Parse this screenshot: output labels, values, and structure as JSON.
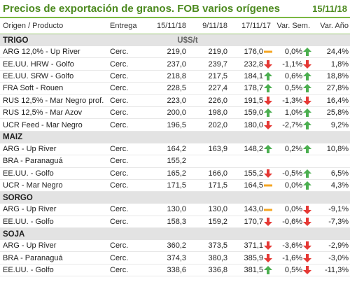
{
  "header": {
    "title": "Precios de exportación de granos. FOB varios orígenes",
    "date": "15/11/18"
  },
  "columns": {
    "origin": "Origen / Producto",
    "delivery": "Entrega",
    "d1": "15/11/18",
    "d2": "9/11/18",
    "d3": "17/11/17",
    "var_week": "Var. Sem.",
    "var_year": "Var. Año"
  },
  "colors": {
    "accent": "#4c8a1f",
    "up": "#4caf50",
    "down": "#e53935",
    "flat": "#f5a623",
    "section_bg": "#e3e3e3"
  },
  "sections": [
    {
      "name": "TRIGO",
      "unit": "U$S/t",
      "rows": [
        {
          "name": "ARG 12,0% - Up River",
          "delivery": "Cerc.",
          "d1": "219,0",
          "d2": "219,0",
          "d3": "176,0",
          "d3_icon": "flat-icon",
          "var_week": "0,0%",
          "week_icon": "up-arrow-icon",
          "var_year": "24,4%"
        },
        {
          "name": "EE.UU. HRW - Golfo",
          "delivery": "Cerc.",
          "d1": "237,0",
          "d2": "239,7",
          "d3": "232,8",
          "d3_icon": "down-arrow-icon",
          "var_week": "-1,1%",
          "week_icon": "down-arrow-icon",
          "var_year": "1,8%"
        },
        {
          "name": "EE.UU. SRW - Golfo",
          "delivery": "Cerc.",
          "d1": "218,8",
          "d2": "217,5",
          "d3": "184,1",
          "d3_icon": "up-arrow-icon",
          "var_week": "0,6%",
          "week_icon": "up-arrow-icon",
          "var_year": "18,8%"
        },
        {
          "name": "FRA Soft - Rouen",
          "delivery": "Cerc.",
          "d1": "228,5",
          "d2": "227,4",
          "d3": "178,7",
          "d3_icon": "up-arrow-icon",
          "var_week": "0,5%",
          "week_icon": "up-arrow-icon",
          "var_year": "27,8%"
        },
        {
          "name": "RUS 12,5% - Mar Negro prof.",
          "delivery": "Cerc.",
          "d1": "223,0",
          "d2": "226,0",
          "d3": "191,5",
          "d3_icon": "down-arrow-icon",
          "var_week": "-1,3%",
          "week_icon": "down-arrow-icon",
          "var_year": "16,4%"
        },
        {
          "name": "RUS 12,5% - Mar Azov",
          "delivery": "Cerc.",
          "d1": "200,0",
          "d2": "198,0",
          "d3": "159,0",
          "d3_icon": "up-arrow-icon",
          "var_week": "1,0%",
          "week_icon": "up-arrow-icon",
          "var_year": "25,8%"
        },
        {
          "name": "UCR Feed - Mar Negro",
          "delivery": "Cerc.",
          "d1": "196,5",
          "d2": "202,0",
          "d3": "180,0",
          "d3_icon": "down-arrow-icon",
          "var_week": "-2,7%",
          "week_icon": "up-arrow-icon",
          "var_year": "9,2%"
        }
      ]
    },
    {
      "name": "MAIZ",
      "unit": "",
      "rows": [
        {
          "name": "ARG - Up River",
          "delivery": "Cerc.",
          "d1": "164,2",
          "d2": "163,9",
          "d3": "148,2",
          "d3_icon": "up-arrow-icon",
          "var_week": "0,2%",
          "week_icon": "up-arrow-icon",
          "var_year": "10,8%"
        },
        {
          "name": "BRA - Paranaguá",
          "delivery": "Cerc.",
          "d1": "155,2",
          "d2": "",
          "d3": "",
          "d3_icon": "",
          "var_week": "",
          "week_icon": "",
          "var_year": ""
        },
        {
          "name": "EE.UU. - Golfo",
          "delivery": "Cerc.",
          "d1": "165,2",
          "d2": "166,0",
          "d3": "155,2",
          "d3_icon": "down-arrow-icon",
          "var_week": "-0,5%",
          "week_icon": "up-arrow-icon",
          "var_year": "6,5%"
        },
        {
          "name": "UCR - Mar Negro",
          "delivery": "Cerc.",
          "d1": "171,5",
          "d2": "171,5",
          "d3": "164,5",
          "d3_icon": "flat-icon",
          "var_week": "0,0%",
          "week_icon": "up-arrow-icon",
          "var_year": "4,3%"
        }
      ]
    },
    {
      "name": "SORGO",
      "unit": "",
      "rows": [
        {
          "name": "ARG - Up River",
          "delivery": "Cerc.",
          "d1": "130,0",
          "d2": "130,0",
          "d3": "143,0",
          "d3_icon": "flat-icon",
          "var_week": "0,0%",
          "week_icon": "down-arrow-icon",
          "var_year": "-9,1%"
        },
        {
          "name": "EE.UU. - Golfo",
          "delivery": "Cerc.",
          "d1": "158,3",
          "d2": "159,2",
          "d3": "170,7",
          "d3_icon": "down-arrow-icon",
          "var_week": "-0,6%",
          "week_icon": "down-arrow-icon",
          "var_year": "-7,3%"
        }
      ]
    },
    {
      "name": "SOJA",
      "unit": "",
      "rows": [
        {
          "name": "ARG - Up River",
          "delivery": "Cerc.",
          "d1": "360,2",
          "d2": "373,5",
          "d3": "371,1",
          "d3_icon": "down-arrow-icon",
          "var_week": "-3,6%",
          "week_icon": "down-arrow-icon",
          "var_year": "-2,9%"
        },
        {
          "name": "BRA - Paranaguá",
          "delivery": "Cerc.",
          "d1": "374,3",
          "d2": "380,3",
          "d3": "385,9",
          "d3_icon": "down-arrow-icon",
          "var_week": "-1,6%",
          "week_icon": "down-arrow-icon",
          "var_year": "-3,0%"
        },
        {
          "name": "EE.UU. - Golfo",
          "delivery": "Cerc.",
          "d1": "338,6",
          "d2": "336,8",
          "d3": "381,5",
          "d3_icon": "up-arrow-icon",
          "var_week": "0,5%",
          "week_icon": "down-arrow-icon",
          "var_year": "-11,3%"
        }
      ]
    }
  ]
}
